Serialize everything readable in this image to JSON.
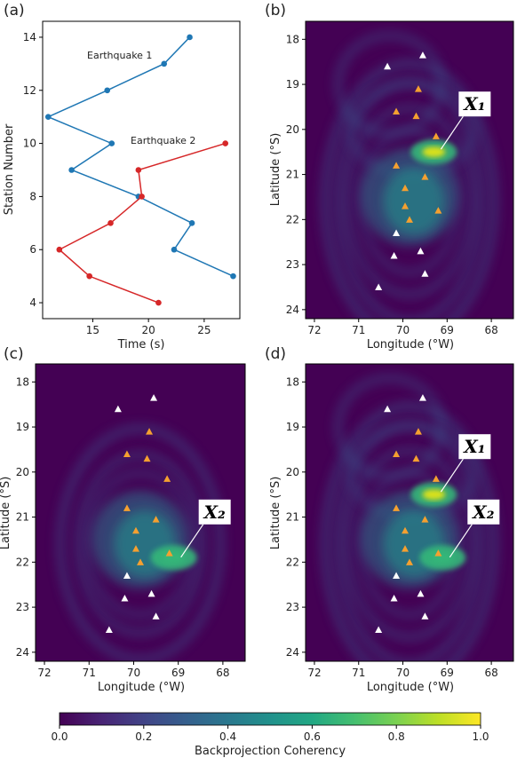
{
  "panels": {
    "a": "(a)",
    "b": "(b)",
    "c": "(c)",
    "d": "(d)"
  },
  "colors": {
    "eq1": "#1f77b4",
    "eq2": "#d62728",
    "map_bg": "#440154",
    "station_outer": "#ffffff",
    "station_inner": "#f5a030"
  },
  "chart_data": [
    {
      "type": "line",
      "panel": "a",
      "xlabel": "Time (s)",
      "ylabel": "Station Number",
      "xlim": [
        10.5,
        28.2
      ],
      "ylim": [
        3.4,
        14.6
      ],
      "xticks": [
        15,
        20,
        25
      ],
      "yticks": [
        4,
        6,
        8,
        10,
        12,
        14
      ],
      "grid": false,
      "series": [
        {
          "name": "Earthquake 1",
          "color": "#1f77b4",
          "points": [
            [
              23.7,
              14
            ],
            [
              21.4,
              13
            ],
            [
              16.3,
              12
            ],
            [
              11.0,
              11
            ],
            [
              16.7,
              10
            ],
            [
              13.1,
              9
            ],
            [
              19.1,
              8
            ],
            [
              23.9,
              7
            ],
            [
              22.3,
              6
            ],
            [
              27.6,
              5
            ]
          ]
        },
        {
          "name": "Earthquake 2",
          "color": "#d62728",
          "points": [
            [
              26.9,
              10
            ],
            [
              19.1,
              9
            ],
            [
              19.4,
              8
            ],
            [
              16.6,
              7
            ],
            [
              12.0,
              6
            ],
            [
              14.7,
              5
            ],
            [
              20.9,
              4
            ]
          ]
        }
      ]
    },
    {
      "type": "heatmap",
      "panel": "b",
      "xlabel": "Longitude (°W)",
      "ylabel": "Latitude (°S)",
      "xlim": [
        72.2,
        67.5
      ],
      "ylim": [
        24.2,
        17.6
      ],
      "xticks": [
        72,
        71,
        70,
        69,
        68
      ],
      "yticks": [
        18,
        19,
        20,
        21,
        22,
        23,
        24
      ],
      "annotations": [
        {
          "label": "X1",
          "lon": 69.2,
          "lat": 20.5
        }
      ],
      "peaks": [
        {
          "lon": 69.3,
          "lat": 20.5,
          "value": 0.9
        }
      ]
    },
    {
      "type": "heatmap",
      "panel": "c",
      "xlabel": "Longitude (°W)",
      "ylabel": "Latitude (°S)",
      "xlim": [
        72.2,
        67.5
      ],
      "ylim": [
        24.2,
        17.6
      ],
      "xticks": [
        72,
        71,
        70,
        69,
        68
      ],
      "yticks": [
        18,
        19,
        20,
        21,
        22,
        23,
        24
      ],
      "annotations": [
        {
          "label": "X2",
          "lon": 69.0,
          "lat": 21.95
        }
      ],
      "peaks": [
        {
          "lon": 69.1,
          "lat": 21.9,
          "value": 0.6
        }
      ]
    },
    {
      "type": "heatmap",
      "panel": "d",
      "xlabel": "Longitude (°W)",
      "ylabel": "Latitude (°S)",
      "xlim": [
        72.2,
        67.5
      ],
      "ylim": [
        24.2,
        17.6
      ],
      "xticks": [
        72,
        71,
        70,
        69,
        68
      ],
      "yticks": [
        18,
        19,
        20,
        21,
        22,
        23,
        24
      ],
      "annotations": [
        {
          "label": "X1",
          "lon": 69.2,
          "lat": 20.5
        },
        {
          "label": "X2",
          "lon": 69.0,
          "lat": 21.95
        }
      ],
      "peaks": [
        {
          "lon": 69.3,
          "lat": 20.5,
          "value": 0.95
        },
        {
          "lon": 69.1,
          "lat": 21.9,
          "value": 0.6
        }
      ]
    }
  ],
  "stations": {
    "outer": [
      [
        70.35,
        18.6
      ],
      [
        69.55,
        18.35
      ],
      [
        69.6,
        22.7
      ],
      [
        70.15,
        22.3
      ],
      [
        70.2,
        22.8
      ],
      [
        69.5,
        23.2
      ],
      [
        70.55,
        23.5
      ]
    ],
    "inner": [
      [
        69.65,
        19.1
      ],
      [
        70.15,
        19.6
      ],
      [
        69.7,
        19.7
      ],
      [
        69.25,
        20.15
      ],
      [
        70.15,
        20.8
      ],
      [
        69.5,
        21.05
      ],
      [
        69.95,
        21.3
      ],
      [
        69.95,
        21.7
      ],
      [
        69.2,
        21.8
      ],
      [
        69.85,
        22.0
      ]
    ]
  },
  "colorbar": {
    "label": "Backprojection Coherency",
    "min": 0.0,
    "max": 1.0,
    "ticks": [
      "0.0",
      "0.2",
      "0.4",
      "0.6",
      "0.8",
      "1.0"
    ]
  }
}
